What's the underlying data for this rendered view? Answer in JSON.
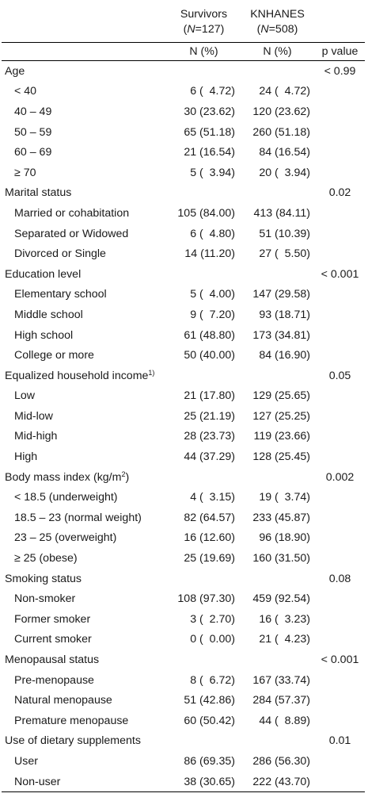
{
  "header": {
    "group1_name": "Survivors",
    "group1_n": "(N=127)",
    "group2_name": "KNHANES",
    "group2_n": "(N=508)",
    "unit1": "N (%)",
    "unit2": "N (%)",
    "pvalue_label": "p value"
  },
  "sections": [
    {
      "label": "Age",
      "sup": "",
      "p": "< 0.99",
      "rows": [
        {
          "label": "< 40",
          "a": "6 (  4.72)",
          "b": "24 (  4.72)"
        },
        {
          "label": "40 – 49",
          "a": "30 (23.62)",
          "b": "120 (23.62)"
        },
        {
          "label": "50 – 59",
          "a": "65 (51.18)",
          "b": "260 (51.18)"
        },
        {
          "label": "60 – 69",
          "a": "21 (16.54)",
          "b": "84 (16.54)"
        },
        {
          "label": "≥ 70",
          "a": "5 (  3.94)",
          "b": "20 (  3.94)"
        }
      ]
    },
    {
      "label": "Marital status",
      "sup": "",
      "p": "0.02",
      "rows": [
        {
          "label": "Married or cohabitation",
          "a": "105 (84.00)",
          "b": "413 (84.11)"
        },
        {
          "label": "Separated or Widowed",
          "a": "6 (  4.80)",
          "b": "51 (10.39)"
        },
        {
          "label": "Divorced or Single",
          "a": "14 (11.20)",
          "b": "27 (  5.50)"
        }
      ]
    },
    {
      "label": "Education level",
      "sup": "",
      "p": "< 0.001",
      "rows": [
        {
          "label": "Elementary school",
          "a": "5 (  4.00)",
          "b": "147 (29.58)"
        },
        {
          "label": "Middle school",
          "a": "9 (  7.20)",
          "b": "93 (18.71)"
        },
        {
          "label": "High school",
          "a": "61 (48.80)",
          "b": "173 (34.81)"
        },
        {
          "label": "College or more",
          "a": "50 (40.00)",
          "b": "84 (16.90)"
        }
      ]
    },
    {
      "label": "Equalized household income",
      "sup": "1)",
      "p": "0.05",
      "rows": [
        {
          "label": "Low",
          "a": "21 (17.80)",
          "b": "129 (25.65)"
        },
        {
          "label": "Mid-low",
          "a": "25 (21.19)",
          "b": "127 (25.25)"
        },
        {
          "label": "Mid-high",
          "a": "28 (23.73)",
          "b": "119 (23.66)"
        },
        {
          "label": "High",
          "a": "44 (37.29)",
          "b": "128 (25.45)"
        }
      ]
    },
    {
      "label": "Body mass index (kg/m",
      "sup": "2",
      "suffix": ")",
      "p": "0.002",
      "rows": [
        {
          "label": "< 18.5 (underweight)",
          "a": "4 (  3.15)",
          "b": "19 (  3.74)"
        },
        {
          "label": "18.5 – 23 (normal weight)",
          "a": "82 (64.57)",
          "b": "233 (45.87)"
        },
        {
          "label": "23 – 25 (overweight)",
          "a": "16 (12.60)",
          "b": "96 (18.90)"
        },
        {
          "label": "≥ 25 (obese)",
          "a": "25 (19.69)",
          "b": "160 (31.50)"
        }
      ]
    },
    {
      "label": "Smoking status",
      "sup": "",
      "p": "0.08",
      "rows": [
        {
          "label": "Non-smoker",
          "a": "108 (97.30)",
          "b": "459 (92.54)"
        },
        {
          "label": "Former smoker",
          "a": "3 (  2.70)",
          "b": "16 (  3.23)"
        },
        {
          "label": "Current smoker",
          "a": "0 (  0.00)",
          "b": "21 (  4.23)"
        }
      ]
    },
    {
      "label": "Menopausal status",
      "sup": "",
      "p": "< 0.001",
      "rows": [
        {
          "label": "Pre-menopause",
          "a": "8 (  6.72)",
          "b": "167 (33.74)"
        },
        {
          "label": "Natural menopause",
          "a": "51 (42.86)",
          "b": "284 (57.37)"
        },
        {
          "label": "Premature menopause",
          "a": "60 (50.42)",
          "b": "44 (  8.89)"
        }
      ]
    },
    {
      "label": "Use of dietary supplements",
      "sup": "",
      "p": "0.01",
      "rows": [
        {
          "label": "User",
          "a": "86 (69.35)",
          "b": "286 (56.30)"
        },
        {
          "label": "Non-user",
          "a": "38 (30.65)",
          "b": "222 (43.70)"
        }
      ]
    }
  ]
}
